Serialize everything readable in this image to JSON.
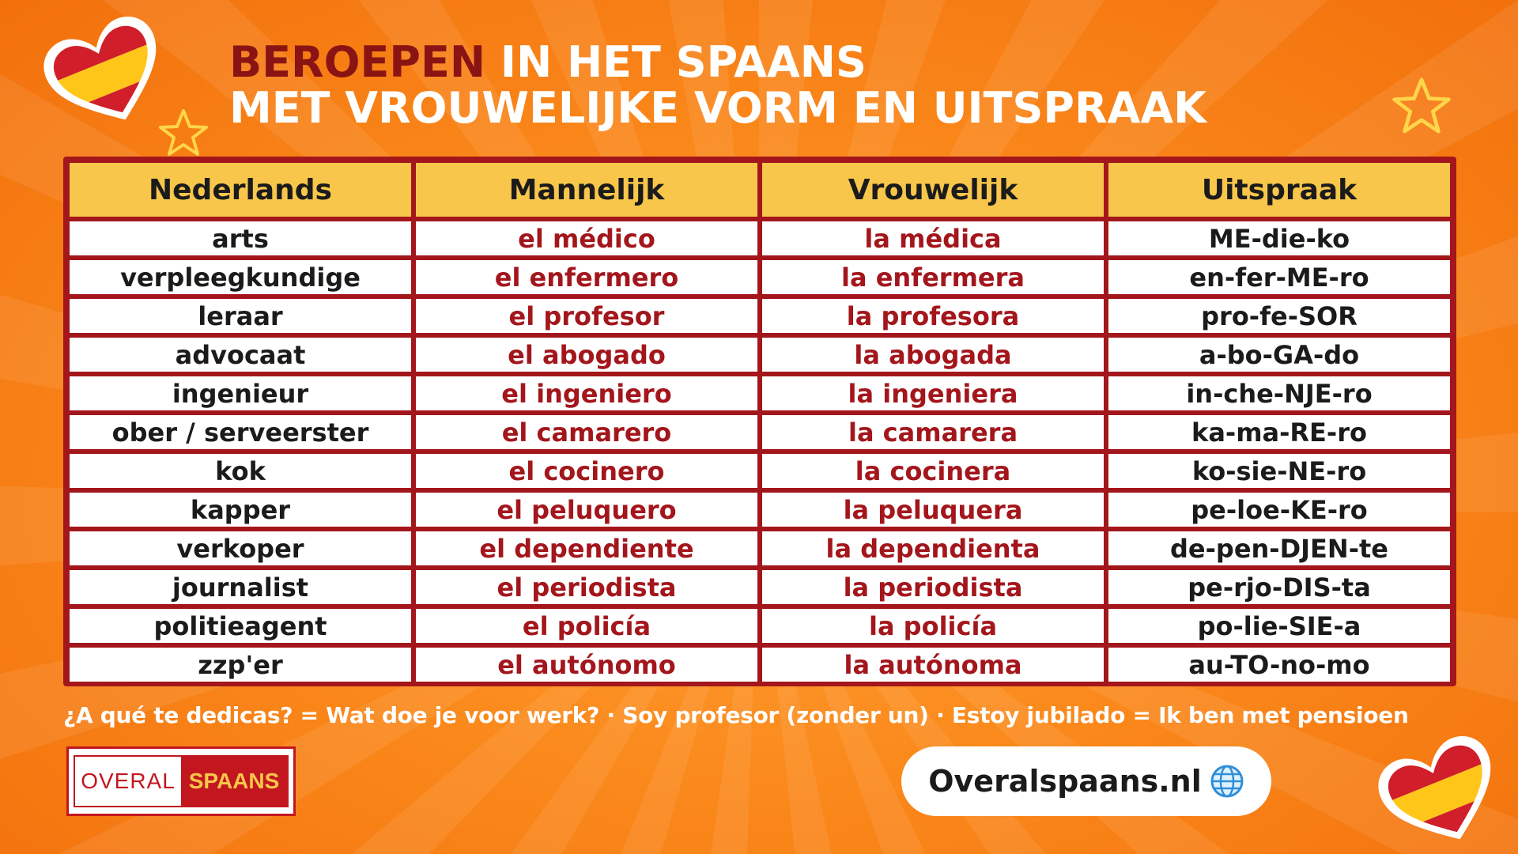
{
  "header": {
    "title_accent": "BEROEPEN",
    "title_rest": " IN HET SPAANS",
    "title_line2": "MET VROUWELIJKE VORM EN UITSPRAAK"
  },
  "table": {
    "headers": [
      "Nederlands",
      "Mannelijk",
      "Vrouwelijk",
      "Uitspraak"
    ],
    "rows": [
      [
        "arts",
        "el médico",
        "la médica",
        "ME-die-ko"
      ],
      [
        "verpleegkundige",
        "el enfermero",
        "la enfermera",
        "en-fer-ME-ro"
      ],
      [
        "leraar",
        "el profesor",
        "la profesora",
        "pro-fe-SOR"
      ],
      [
        "advocaat",
        "el abogado",
        "la abogada",
        "a-bo-GA-do"
      ],
      [
        "ingenieur",
        "el ingeniero",
        "la ingeniera",
        "in-che-NJE-ro"
      ],
      [
        "ober / serveerster",
        "el camarero",
        "la camarera",
        "ka-ma-RE-ro"
      ],
      [
        "kok",
        "el cocinero",
        "la cocinera",
        "ko-sie-NE-ro"
      ],
      [
        "kapper",
        "el peluquero",
        "la peluquera",
        "pe-loe-KE-ro"
      ],
      [
        "verkoper",
        "el dependiente",
        "la dependienta",
        "de-pen-DJEN-te"
      ],
      [
        "journalist",
        "el periodista",
        "la periodista",
        "pe-rjo-DIS-ta"
      ],
      [
        "politieagent",
        "el policía",
        "la policía",
        "po-lie-SIE-a"
      ],
      [
        "zzp'er",
        "el autónomo",
        "la autónoma",
        "au-TO-no-mo"
      ]
    ]
  },
  "footer": {
    "note": "¿A qué te dedicas? = Wat doe je voor werk? · Soy profesor (zonder un) · Estoy jubilado = Ik ben met pensioen",
    "logo_left": "OVERAL",
    "logo_right": "SPAANS",
    "url": "Overalspaans.nl"
  },
  "icons": [
    "spanish-flag-heart-icon",
    "star-outline-icon",
    "globe-icon"
  ],
  "colors": {
    "background": "#fb8a1c",
    "accent_dark_red": "#8a1414",
    "table_border": "#a3161c",
    "header_yellow": "#f8c64a",
    "spanish_text_red": "#a3161c"
  }
}
